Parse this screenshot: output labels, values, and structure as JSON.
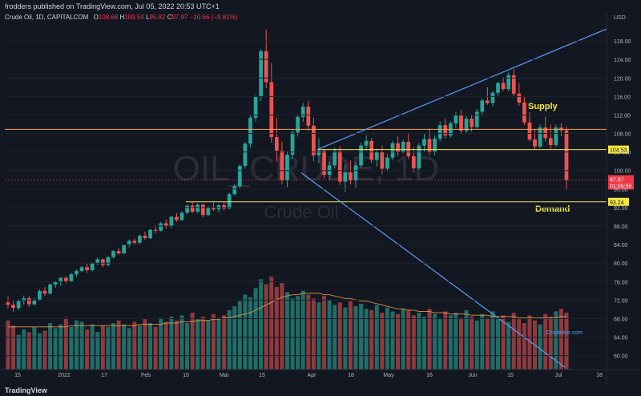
{
  "header": {
    "publisher": "frodders published on TradingView.com, Jul 05, 2022 20:53 UTC+1"
  },
  "legend": {
    "symbol": "Crude Oil, 1D, CAPITALCOM",
    "open_label": "O",
    "open": "108.68",
    "high_label": "H",
    "high": "109.54",
    "low_label": "L",
    "low": "95.82",
    "close_label": "C",
    "close": "97.97",
    "change": "−10.66 (−9.81%)"
  },
  "watermark": {
    "main": "OIL_CRUDE, 1D",
    "sub": "Crude Oil"
  },
  "footer": {
    "brand": "TradingView"
  },
  "colors": {
    "up": "#26a69a",
    "down": "#ef5350",
    "trend": "#5b9cf6",
    "orange": "#f7a14b",
    "yellow": "#f5e642",
    "bg": "#131722"
  },
  "chart_data": {
    "type": "candlestick",
    "currency": "USD",
    "y_axis_ticks": [
      60.0,
      64.0,
      68.0,
      72.0,
      76.0,
      80.0,
      84.0,
      88.0,
      92.0,
      96.0,
      100.0,
      104.0,
      108.0,
      112.0,
      116.0,
      120.0,
      124.0,
      128.0
    ],
    "y_axis_tick_labels": [
      "60.00",
      "64.00",
      "68.00",
      "72.00",
      "76.00",
      "80.00",
      "84.00",
      "88.00",
      "92.00",
      "96.00",
      "100.00",
      "104.00",
      "108.00",
      "112.00",
      "116.00",
      "120.00",
      "124.00",
      "128.00"
    ],
    "ylim": [
      57,
      132
    ],
    "x_axis_labels": [
      "15",
      "2022",
      "17",
      "Feb",
      "15",
      "Mar",
      "15",
      "Apr",
      "18",
      "May",
      "16",
      "Jun",
      "15",
      "Jul",
      "18"
    ],
    "key_levels": [
      {
        "label": "104.53",
        "value": 104.53,
        "color": "yellow"
      },
      {
        "label": "93.24",
        "value": 93.24,
        "color": "yellow"
      },
      {
        "label": "",
        "value": 108.9,
        "color": "orange"
      }
    ],
    "price_label": {
      "price": "97.97",
      "countdown": "01:06:56",
      "value": 97.97
    },
    "annotations": {
      "supply": "Supply",
      "demand": "Demand",
      "site": "Crudeline.com"
    },
    "candles": [
      [
        71.5,
        72.8,
        70.2,
        71.0
      ],
      [
        71.0,
        71.8,
        69.4,
        70.3
      ],
      [
        70.3,
        72.2,
        69.8,
        71.8
      ],
      [
        71.8,
        73.0,
        71.0,
        72.4
      ],
      [
        72.4,
        72.9,
        70.5,
        71.1
      ],
      [
        71.1,
        72.5,
        70.8,
        72.0
      ],
      [
        72.0,
        74.3,
        71.8,
        74.0
      ],
      [
        74.0,
        74.8,
        72.9,
        73.4
      ],
      [
        73.4,
        75.6,
        73.2,
        75.4
      ],
      [
        75.4,
        76.2,
        74.7,
        75.9
      ],
      [
        75.9,
        77.0,
        75.1,
        76.8
      ],
      [
        76.8,
        77.2,
        75.6,
        76.0
      ],
      [
        76.0,
        77.9,
        75.8,
        77.6
      ],
      [
        77.6,
        78.6,
        77.0,
        78.3
      ],
      [
        78.3,
        79.4,
        78.0,
        79.1
      ],
      [
        79.1,
        79.9,
        77.9,
        78.5
      ],
      [
        78.5,
        80.2,
        78.2,
        80.0
      ],
      [
        80.0,
        81.2,
        79.5,
        80.8
      ],
      [
        80.8,
        81.0,
        79.1,
        79.6
      ],
      [
        79.6,
        81.5,
        79.3,
        81.3
      ],
      [
        81.3,
        82.8,
        81.0,
        82.6
      ],
      [
        82.6,
        83.3,
        81.8,
        82.1
      ],
      [
        82.1,
        84.1,
        81.9,
        83.9
      ],
      [
        83.9,
        85.1,
        83.4,
        84.8
      ],
      [
        84.8,
        85.3,
        83.9,
        84.4
      ],
      [
        84.4,
        86.2,
        84.1,
        85.9
      ],
      [
        85.9,
        86.8,
        85.0,
        85.4
      ],
      [
        85.4,
        87.4,
        85.2,
        87.2
      ],
      [
        87.2,
        88.1,
        86.4,
        87.0
      ],
      [
        87.0,
        88.9,
        86.8,
        88.6
      ],
      [
        88.6,
        89.4,
        87.4,
        87.9
      ],
      [
        87.9,
        90.3,
        87.6,
        90.0
      ],
      [
        90.0,
        90.8,
        88.9,
        89.3
      ],
      [
        89.3,
        91.2,
        89.1,
        90.9
      ],
      [
        90.9,
        92.7,
        90.6,
        92.4
      ],
      [
        92.4,
        93.2,
        90.8,
        91.1
      ],
      [
        91.1,
        93.0,
        90.7,
        92.6
      ],
      [
        92.6,
        92.9,
        89.9,
        90.4
      ],
      [
        90.4,
        92.3,
        90.1,
        91.9
      ],
      [
        91.9,
        93.1,
        91.2,
        91.6
      ],
      [
        91.6,
        92.8,
        90.9,
        92.5
      ],
      [
        92.5,
        93.3,
        91.3,
        91.8
      ],
      [
        91.8,
        95.2,
        91.6,
        94.9
      ],
      [
        94.9,
        97.0,
        94.6,
        96.6
      ],
      [
        96.6,
        101.4,
        96.2,
        101.0
      ],
      [
        101.0,
        106.2,
        100.4,
        105.8
      ],
      [
        105.8,
        111.9,
        105.0,
        111.4
      ],
      [
        111.4,
        116.3,
        110.6,
        115.9
      ],
      [
        115.9,
        126.3,
        115.0,
        125.8
      ],
      [
        125.8,
        130.4,
        117.8,
        119.1
      ],
      [
        119.1,
        123.2,
        106.0,
        107.2
      ],
      [
        107.2,
        111.4,
        102.0,
        104.3
      ],
      [
        104.3,
        106.3,
        97.0,
        97.9
      ],
      [
        97.9,
        104.2,
        96.4,
        103.4
      ],
      [
        103.4,
        108.9,
        102.6,
        108.2
      ],
      [
        108.2,
        112.2,
        107.3,
        111.6
      ],
      [
        111.6,
        114.6,
        110.5,
        113.8
      ],
      [
        113.8,
        115.0,
        108.5,
        109.7
      ],
      [
        109.7,
        111.4,
        102.0,
        103.3
      ],
      [
        103.3,
        107.0,
        101.6,
        104.3
      ],
      [
        104.3,
        104.6,
        98.3,
        99.1
      ],
      [
        99.1,
        101.9,
        97.9,
        101.1
      ],
      [
        101.1,
        104.9,
        100.4,
        104.2
      ],
      [
        104.2,
        105.2,
        96.9,
        97.6
      ],
      [
        97.6,
        101.4,
        95.3,
        99.6
      ],
      [
        99.6,
        102.2,
        97.0,
        97.9
      ],
      [
        97.9,
        101.8,
        96.3,
        101.1
      ],
      [
        101.1,
        106.0,
        100.6,
        105.4
      ],
      [
        105.4,
        107.6,
        104.2,
        106.4
      ],
      [
        106.4,
        107.0,
        101.6,
        102.3
      ],
      [
        102.3,
        104.8,
        100.9,
        104.0
      ],
      [
        104.0,
        105.4,
        99.2,
        100.4
      ],
      [
        100.4,
        103.6,
        99.8,
        102.8
      ],
      [
        102.8,
        106.4,
        102.2,
        105.9
      ],
      [
        105.9,
        107.4,
        103.2,
        104.0
      ],
      [
        104.0,
        106.7,
        103.6,
        106.2
      ],
      [
        106.2,
        108.1,
        102.5,
        103.1
      ],
      [
        103.1,
        105.1,
        99.6,
        100.5
      ],
      [
        100.5,
        105.9,
        100.1,
        105.4
      ],
      [
        105.4,
        107.9,
        104.1,
        106.8
      ],
      [
        106.8,
        109.1,
        103.3,
        104.1
      ],
      [
        104.1,
        107.6,
        103.3,
        106.9
      ],
      [
        106.9,
        110.6,
        106.3,
        109.8
      ],
      [
        109.8,
        111.3,
        106.9,
        107.6
      ],
      [
        107.6,
        110.7,
        107.1,
        110.2
      ],
      [
        110.2,
        112.6,
        109.2,
        111.9
      ],
      [
        111.9,
        113.1,
        107.9,
        108.6
      ],
      [
        108.6,
        111.8,
        108.1,
        111.2
      ],
      [
        111.2,
        112.1,
        108.4,
        109.4
      ],
      [
        109.4,
        113.3,
        109.0,
        112.7
      ],
      [
        112.7,
        115.6,
        111.9,
        115.1
      ],
      [
        115.1,
        118.0,
        114.2,
        114.6
      ],
      [
        114.6,
        117.2,
        113.8,
        116.8
      ],
      [
        116.8,
        119.2,
        116.1,
        118.9
      ],
      [
        118.9,
        120.2,
        117.2,
        117.6
      ],
      [
        117.6,
        121.2,
        117.1,
        120.6
      ],
      [
        120.6,
        121.9,
        116.0,
        116.6
      ],
      [
        116.6,
        118.9,
        114.0,
        114.7
      ],
      [
        114.7,
        115.9,
        109.8,
        110.4
      ],
      [
        110.4,
        112.6,
        106.3,
        106.7
      ],
      [
        106.7,
        108.8,
        104.6,
        105.2
      ],
      [
        105.2,
        109.9,
        104.8,
        109.3
      ],
      [
        109.3,
        111.6,
        106.3,
        107.0
      ],
      [
        107.0,
        109.9,
        104.7,
        105.5
      ],
      [
        105.5,
        109.9,
        105.0,
        109.3
      ],
      [
        109.3,
        110.2,
        107.4,
        108.7
      ],
      [
        108.7,
        109.5,
        95.8,
        97.97
      ]
    ],
    "volumes": [
      38,
      34,
      27,
      31,
      29,
      33,
      28,
      30,
      36,
      32,
      35,
      40,
      33,
      38,
      37,
      31,
      35,
      29,
      34,
      33,
      36,
      38,
      35,
      32,
      37,
      34,
      39,
      36,
      33,
      40,
      37,
      41,
      38,
      42,
      36,
      44,
      39,
      41,
      38,
      43,
      40,
      42,
      46,
      49,
      53,
      58,
      56,
      63,
      70,
      66,
      72,
      64,
      67,
      60,
      55,
      57,
      61,
      58,
      55,
      52,
      57,
      54,
      50,
      52,
      48,
      53,
      49,
      51,
      47,
      46,
      50,
      44,
      48,
      45,
      43,
      47,
      46,
      42,
      44,
      41,
      47,
      43,
      39,
      45,
      42,
      44,
      40,
      46,
      41,
      38,
      43,
      40,
      45,
      39,
      42,
      37,
      44,
      39,
      36,
      42,
      38,
      35,
      43,
      41,
      45,
      47,
      44
    ],
    "volume_ma": [
      33,
      33,
      33,
      33,
      33,
      33,
      33,
      33,
      33,
      33,
      33,
      33,
      34,
      34,
      34,
      34,
      34,
      34,
      34,
      34,
      34,
      34,
      34,
      34,
      34,
      35,
      35,
      35,
      35,
      35,
      36,
      36,
      36,
      37,
      37,
      37,
      38,
      38,
      38,
      39,
      39,
      40,
      40,
      41,
      42,
      43,
      44,
      46,
      48,
      50,
      52,
      54,
      56,
      57,
      58,
      58,
      59,
      59,
      59,
      59,
      58,
      58,
      57,
      56,
      55,
      55,
      54,
      53,
      53,
      52,
      51,
      50,
      49,
      48,
      47,
      47,
      46,
      46,
      45,
      45,
      45,
      44,
      44,
      44,
      43,
      43,
      43,
      43,
      42,
      42,
      42,
      42,
      41,
      41,
      41,
      41,
      41,
      40,
      40,
      40,
      40,
      40,
      40,
      40,
      40,
      41,
      41
    ]
  }
}
